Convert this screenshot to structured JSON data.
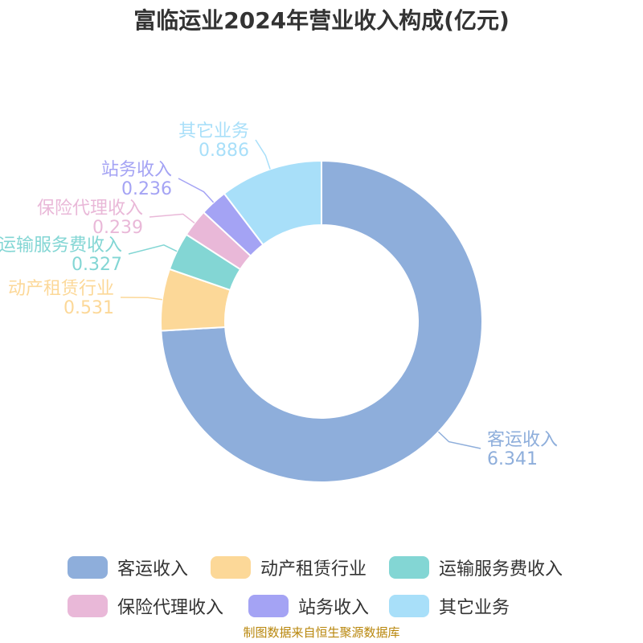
{
  "chart_data": {
    "type": "pie",
    "title": "富临运业2024年营业收入构成(亿元)",
    "donut": true,
    "legend_position": "bottom",
    "slices": [
      {
        "label": "客运收入",
        "value": 6.341,
        "value_text": "6.341",
        "color": "#8eaedb"
      },
      {
        "label": "动产租赁行业",
        "value": 0.531,
        "value_text": "0.531",
        "color": "#fcd898"
      },
      {
        "label": "运输服务费收入",
        "value": 0.327,
        "value_text": "0.327",
        "color": "#83d6d4"
      },
      {
        "label": "保险代理收入",
        "value": 0.239,
        "value_text": "0.239",
        "color": "#e9b8d8"
      },
      {
        "label": "站务收入",
        "value": 0.236,
        "value_text": "0.236",
        "color": "#a4a3f4"
      },
      {
        "label": "其它业务",
        "value": 0.886,
        "value_text": "0.886",
        "color": "#a8dff9"
      }
    ]
  },
  "source_note": "制图数据来自恒生聚源数据库"
}
